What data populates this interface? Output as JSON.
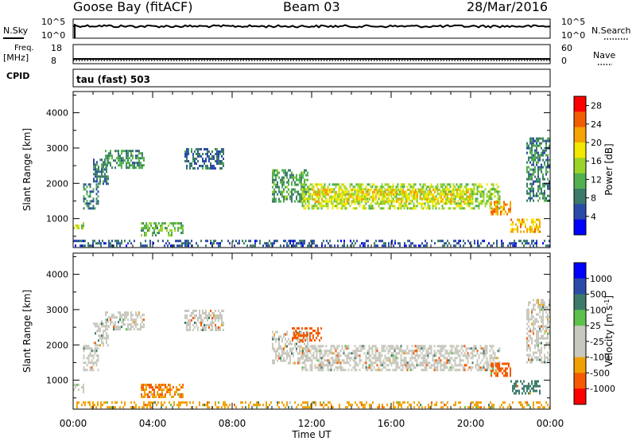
{
  "header": {
    "station": "Goose Bay (fitACF)",
    "beam": "Beam 03",
    "date": "28/Mar/2016"
  },
  "strips": {
    "nsky_label": "N.Sky",
    "nsearch_label": "N.Search",
    "nsky_ticks": [
      "10^5",
      "10^0"
    ],
    "nsearch_ticks": [
      "10^5",
      "10^0"
    ],
    "freq_label": "Freq.",
    "freq_unit": "[MHz]",
    "freq_ticks": [
      "18",
      "8"
    ],
    "nave_label": "Nave",
    "nave_ticks": [
      "60",
      "0"
    ],
    "cpid_label": "CPID",
    "cpid_text": "tau (fast) 503"
  },
  "colors": {
    "trace": "#000000",
    "frame": "#000000",
    "power_scale": [
      "#0000ff",
      "#2c4ba8",
      "#3c7a6b",
      "#52b04e",
      "#9bd428",
      "#f2e800",
      "#f5a300",
      "#f05e00",
      "#ff0000"
    ],
    "velocity_scale": [
      "#ff0000",
      "#f55a00",
      "#f0a000",
      "#c8c8be",
      "#c8c8be",
      "#5cc14a",
      "#3c7a6b",
      "#2c4ba8",
      "#0000ff"
    ]
  },
  "chart_data": [
    {
      "type": "heatmap",
      "title": "",
      "quantity": "Power",
      "xlabel": "",
      "ylabel": "Slant Range [km]",
      "xlim": [
        "00:00",
        "24:00"
      ],
      "ylim": [
        180,
        4600
      ],
      "yticks": [
        1000,
        2000,
        3000,
        4000
      ],
      "colorbar_label": "Power [dB]",
      "colorbar_ticks": [
        4,
        8,
        12,
        16,
        20,
        24,
        28
      ],
      "colorbar_range": [
        0,
        30
      ],
      "regions": [
        {
          "t": [
            0.5,
            1.3
          ],
          "r": [
            1300,
            2000
          ],
          "level": 8
        },
        {
          "t": [
            1.0,
            1.8
          ],
          "r": [
            2000,
            2700
          ],
          "level": 7
        },
        {
          "t": [
            1.6,
            3.6
          ],
          "r": [
            2450,
            2950
          ],
          "level": 9
        },
        {
          "t": [
            5.6,
            7.6
          ],
          "r": [
            2400,
            3000
          ],
          "level": 6
        },
        {
          "t": [
            0.0,
            0.5
          ],
          "r": [
            650,
            900
          ],
          "level": 16
        },
        {
          "t": [
            3.4,
            5.5
          ],
          "r": [
            500,
            900
          ],
          "level": 12
        },
        {
          "t": [
            10.0,
            11.8
          ],
          "r": [
            1500,
            2400
          ],
          "level": 10
        },
        {
          "t": [
            11.5,
            21.5
          ],
          "r": [
            1300,
            2000
          ],
          "level": 15
        },
        {
          "t": [
            12.0,
            20.0
          ],
          "r": [
            1450,
            1850
          ],
          "level": 19
        },
        {
          "t": [
            21.0,
            22.0
          ],
          "r": [
            1100,
            1500
          ],
          "level": 24
        },
        {
          "t": [
            22.0,
            23.5
          ],
          "r": [
            600,
            1000
          ],
          "level": 21
        },
        {
          "t": [
            22.8,
            24.0
          ],
          "r": [
            1500,
            3300
          ],
          "level": 8
        },
        {
          "t": [
            0.0,
            24.0
          ],
          "r": [
            200,
            400
          ],
          "level": 5
        }
      ]
    },
    {
      "type": "heatmap",
      "title": "",
      "quantity": "Velocity",
      "xlabel": "Time UT",
      "ylabel": "Slant Range [km]",
      "xlim": [
        "00:00",
        "24:00"
      ],
      "xticks": [
        "00:00",
        "04:00",
        "08:00",
        "12:00",
        "16:00",
        "20:00",
        "00:00"
      ],
      "ylim": [
        180,
        4600
      ],
      "yticks": [
        1000,
        2000,
        3000,
        4000
      ],
      "colorbar_label": "Velocity [m s^-1]",
      "colorbar_ticks": [
        1000,
        500,
        100,
        25,
        -25,
        -100,
        -500,
        -1000
      ],
      "regions": [
        {
          "t": [
            0.5,
            1.3
          ],
          "r": [
            1300,
            2000
          ],
          "v": 0
        },
        {
          "t": [
            1.0,
            1.8
          ],
          "r": [
            2000,
            2700
          ],
          "v": 0
        },
        {
          "t": [
            1.6,
            3.6
          ],
          "r": [
            2450,
            2950
          ],
          "v": 0
        },
        {
          "t": [
            5.6,
            7.6
          ],
          "r": [
            2400,
            3000
          ],
          "v": 0
        },
        {
          "t": [
            0.0,
            0.5
          ],
          "r": [
            650,
            900
          ],
          "v": 0
        },
        {
          "t": [
            3.4,
            5.5
          ],
          "r": [
            500,
            900
          ],
          "v": -100
        },
        {
          "t": [
            10.0,
            11.8
          ],
          "r": [
            1500,
            2400
          ],
          "v": 0
        },
        {
          "t": [
            11.5,
            21.5
          ],
          "r": [
            1300,
            2000
          ],
          "v": 0
        },
        {
          "t": [
            11.0,
            12.5
          ],
          "r": [
            2100,
            2500
          ],
          "v": -200
        },
        {
          "t": [
            21.0,
            22.0
          ],
          "r": [
            1100,
            1500
          ],
          "v": -150
        },
        {
          "t": [
            22.0,
            23.5
          ],
          "r": [
            600,
            1000
          ],
          "v": 150
        },
        {
          "t": [
            22.8,
            24.0
          ],
          "r": [
            1500,
            3300
          ],
          "v": 0
        },
        {
          "t": [
            0.0,
            24.0
          ],
          "r": [
            200,
            400
          ],
          "v": -50
        }
      ]
    }
  ]
}
